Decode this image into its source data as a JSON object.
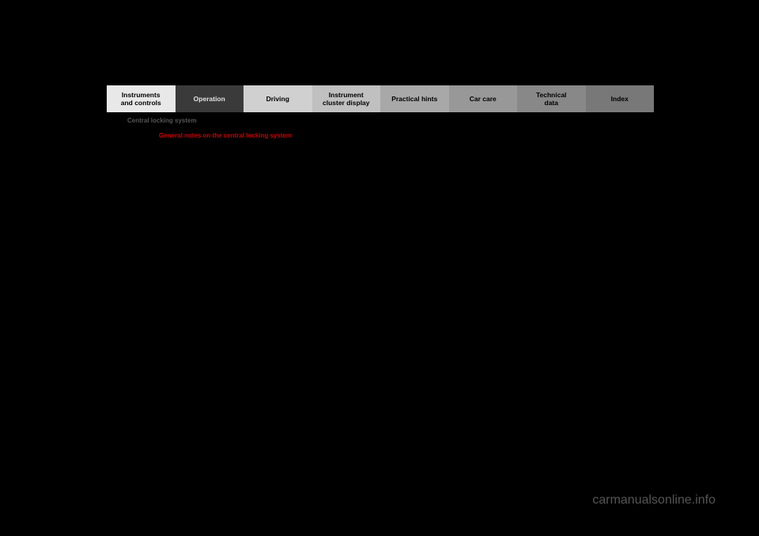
{
  "tabs": [
    {
      "label": "Instruments\nand controls",
      "bg": "#e8e8e8",
      "fg": "#000000"
    },
    {
      "label": "Operation",
      "bg": "#3a3a3a",
      "fg": "#e0e0e0"
    },
    {
      "label": "Driving",
      "bg": "#d0d0d0",
      "fg": "#000000"
    },
    {
      "label": "Instrument\ncluster display",
      "bg": "#c0c0c0",
      "fg": "#000000"
    },
    {
      "label": "Practical hints",
      "bg": "#a8a8a8",
      "fg": "#000000"
    },
    {
      "label": "Car care",
      "bg": "#989898",
      "fg": "#000000"
    },
    {
      "label": "Technical\ndata",
      "bg": "#888888",
      "fg": "#000000"
    },
    {
      "label": "Index",
      "bg": "#787878",
      "fg": "#000000"
    }
  ],
  "section_header": "Central locking system",
  "page_title": "General notes on the central locking system",
  "watermark": "carmanualsonline.info"
}
